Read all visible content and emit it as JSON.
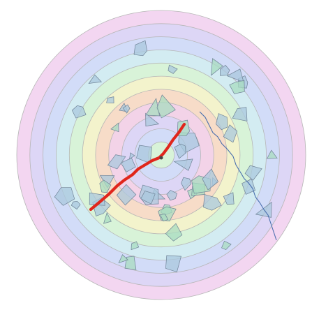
{
  "diagram": {
    "kind": "concentric-ring-maze",
    "ring_count": 11,
    "ring_colors": [
      "#f3d6f1",
      "#ddd6f6",
      "#d2dcf8",
      "#d3ecf2",
      "#d8f3d8",
      "#f3f3cc",
      "#f7dcc8",
      "#f3d3e8",
      "#ddd6f6",
      "#d2dcf8",
      "#d8f3d8"
    ],
    "ring_stroke": "#b6b6b6",
    "obstacle_fill": "#a9c8de",
    "obstacle_fill_alt": "#a8dcc0",
    "obstacle_stroke": "#6f8296",
    "river_color": "#4a6fae",
    "path_color": "#e0261c",
    "center_color": "#444444",
    "obstacle_count": 60,
    "has_river": true,
    "has_path": true
  }
}
